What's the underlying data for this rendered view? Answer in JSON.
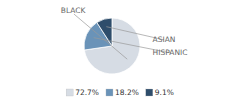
{
  "chart_data": {
    "type": "pie",
    "categories": [
      "BLACK",
      "HISPANIC",
      "ASIAN"
    ],
    "values": [
      72.7,
      18.2,
      9.1
    ],
    "value_labels": [
      "72.7%",
      "18.2%",
      "9.1%"
    ],
    "colors": [
      "#d6dce4",
      "#6a93b8",
      "#2e4d6b"
    ],
    "legend": "bottom"
  }
}
